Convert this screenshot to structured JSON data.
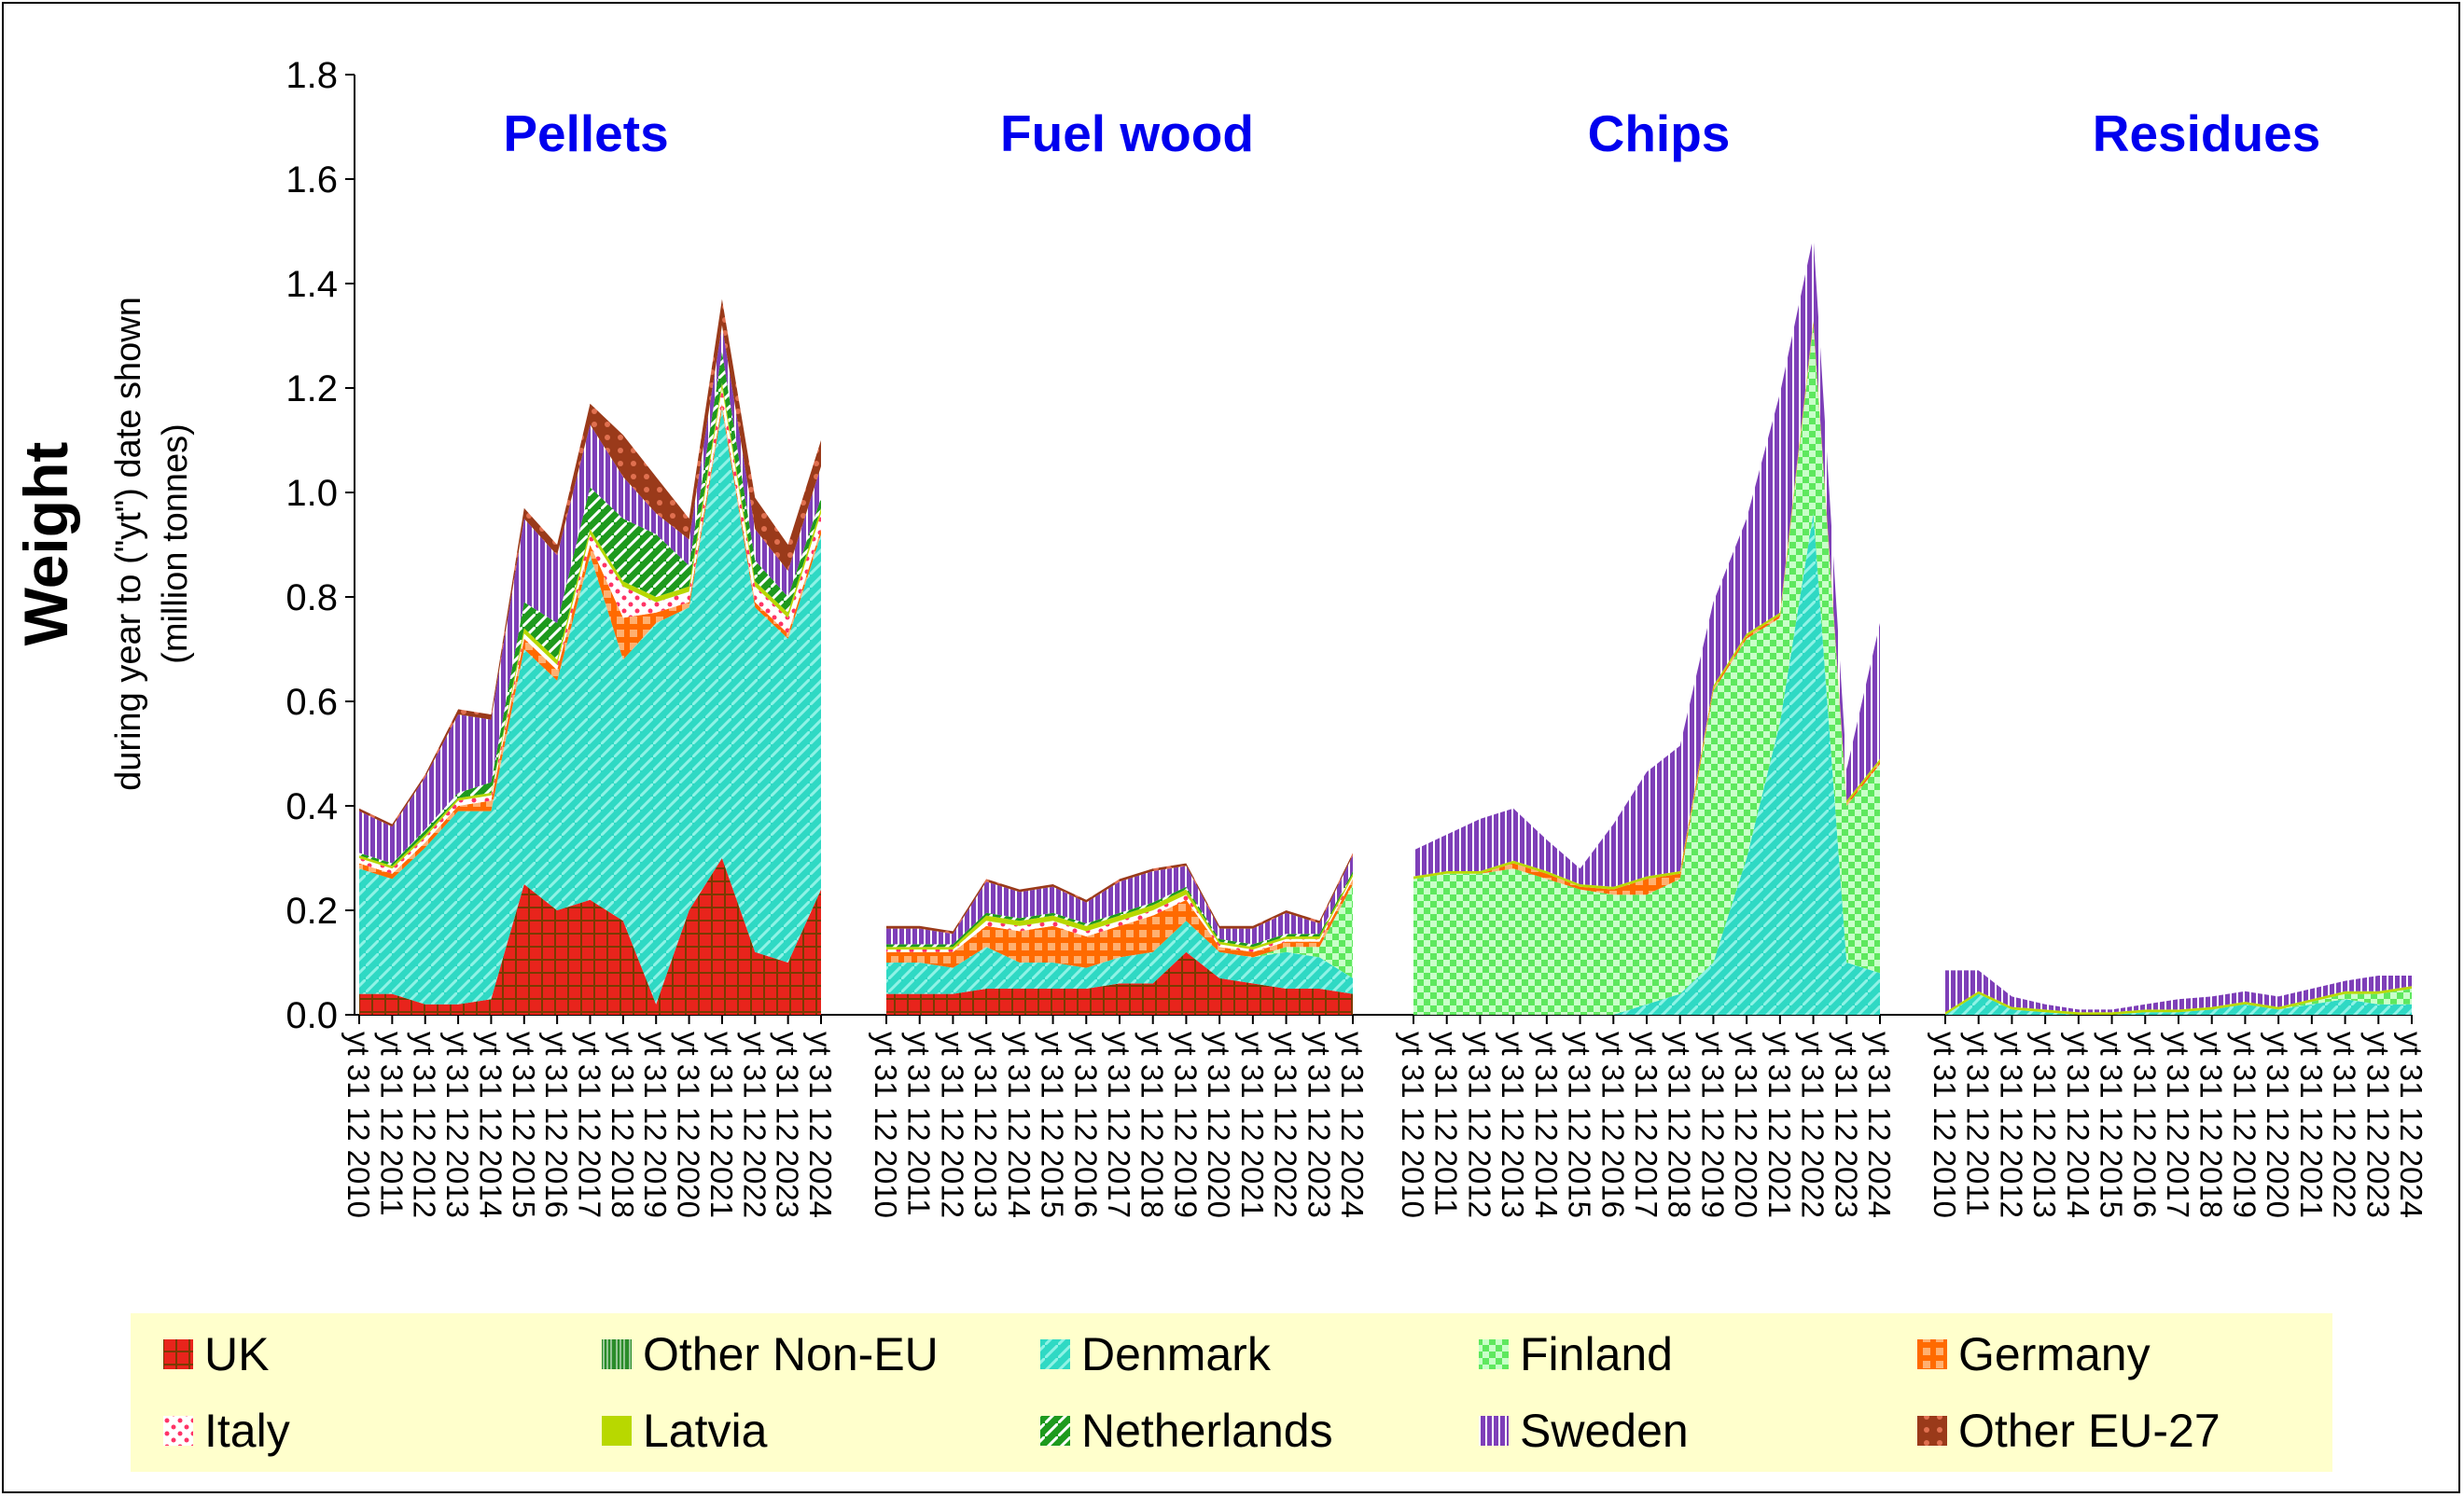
{
  "chart_data": {
    "type": "area",
    "stacked": true,
    "ylabel": "Weight",
    "ylabel_sub1": "during year to (\"yt\") date shown",
    "ylabel_sub2": "(million tonnes)",
    "ylim": [
      0,
      1.8
    ],
    "yticks": [
      "0.0",
      "0.2",
      "0.4",
      "0.6",
      "0.8",
      "1.0",
      "1.2",
      "1.4",
      "1.6",
      "1.8"
    ],
    "grid": false,
    "legend_position": "bottom",
    "x_tick_labels": [
      "yt 31 12 2010",
      "yt 31 12 2011",
      "yt 31 12 2012",
      "yt 31 12 2013",
      "yt 31 12 2014",
      "yt 31 12 2015",
      "yt 31 12 2016",
      "yt 31 12 2017",
      "yt 31 12 2018",
      "yt 31 12 2019",
      "yt 31 12 2020",
      "yt 31 12 2021",
      "yt 31 12 2022",
      "yt 31 12 2023",
      "yt 31 12 2024"
    ],
    "series_names": [
      "UK",
      "Other Non-EU",
      "Denmark",
      "Finland",
      "Germany",
      "Italy",
      "Latvia",
      "Netherlands",
      "Sweden",
      "Other EU-27"
    ],
    "series_colors": [
      "#e8241c",
      "#2a8c2a",
      "#2fd9c4",
      "#5ee85e",
      "#ff6a00",
      "#ff3366",
      "#b8d800",
      "#1e9a1e",
      "#7e3fb8",
      "#9a3a1a"
    ],
    "legend": [
      {
        "name": "UK",
        "color": "#e8241c"
      },
      {
        "name": "Other Non-EU",
        "color": "#2a8c2a"
      },
      {
        "name": "Denmark",
        "color": "#2fd9c4"
      },
      {
        "name": "Finland",
        "color": "#5ee85e"
      },
      {
        "name": "Germany",
        "color": "#ff6a00"
      },
      {
        "name": "Italy",
        "color": "#ff3366"
      },
      {
        "name": "Latvia",
        "color": "#b8d800"
      },
      {
        "name": "Netherlands",
        "color": "#1e9a1e"
      },
      {
        "name": "Sweden",
        "color": "#7e3fb8"
      },
      {
        "name": "Other EU-27",
        "color": "#9a3a1a"
      }
    ],
    "panels": [
      {
        "title": "Pellets",
        "x": [
          "2010",
          "2011",
          "2012",
          "2013",
          "2014",
          "2015",
          "2016",
          "2017",
          "2018",
          "2019",
          "2020",
          "2021",
          "2022",
          "2023",
          "2024"
        ],
        "series": [
          {
            "name": "UK",
            "values": [
              0.04,
              0.04,
              0.02,
              0.02,
              0.03,
              0.25,
              0.2,
              0.22,
              0.18,
              0.02,
              0.2,
              0.3,
              0.12,
              0.1,
              0.24
            ]
          },
          {
            "name": "Other Non-EU",
            "values": [
              0,
              0,
              0,
              0,
              0,
              0,
              0,
              0,
              0,
              0,
              0,
              0,
              0,
              0,
              0
            ]
          },
          {
            "name": "Denmark",
            "values": [
              0.24,
              0.22,
              0.3,
              0.37,
              0.36,
              0.45,
              0.44,
              0.66,
              0.5,
              0.73,
              0.58,
              0.86,
              0.66,
              0.62,
              0.68
            ]
          },
          {
            "name": "Finland",
            "values": [
              0,
              0,
              0,
              0,
              0,
              0,
              0,
              0,
              0,
              0,
              0,
              0,
              0,
              0,
              0
            ]
          },
          {
            "name": "Germany",
            "values": [
              0.01,
              0.01,
              0.01,
              0.01,
              0.02,
              0.02,
              0.02,
              0.02,
              0.08,
              0.02,
              0.01,
              0.01,
              0.01,
              0.01,
              0.01
            ]
          },
          {
            "name": "Italy",
            "values": [
              0.01,
              0.01,
              0.01,
              0.01,
              0.01,
              0.01,
              0.01,
              0.02,
              0.06,
              0.02,
              0.02,
              0.03,
              0.03,
              0.03,
              0.03
            ]
          },
          {
            "name": "Latvia",
            "values": [
              0.005,
              0.005,
              0.005,
              0.005,
              0.005,
              0.01,
              0.01,
              0.01,
              0.01,
              0.01,
              0.01,
              0.01,
              0.01,
              0.01,
              0.01
            ]
          },
          {
            "name": "Netherlands",
            "values": [
              0.005,
              0.005,
              0.01,
              0.01,
              0.02,
              0.05,
              0.07,
              0.08,
              0.12,
              0.12,
              0.04,
              0.06,
              0.04,
              0.03,
              0.02
            ]
          },
          {
            "name": "Sweden",
            "values": [
              0.08,
              0.07,
              0.1,
              0.15,
              0.12,
              0.16,
              0.13,
              0.12,
              0.08,
              0.04,
              0.05,
              0.05,
              0.06,
              0.05,
              0.06
            ]
          },
          {
            "name": "Other EU-27",
            "values": [
              0.005,
              0.005,
              0.005,
              0.01,
              0.01,
              0.02,
              0.02,
              0.04,
              0.08,
              0.07,
              0.04,
              0.05,
              0.06,
              0.05,
              0.05
            ]
          }
        ]
      },
      {
        "title": "Fuel wood",
        "x": [
          "2010",
          "2011",
          "2012",
          "2013",
          "2014",
          "2015",
          "2016",
          "2017",
          "2018",
          "2019",
          "2020",
          "2021",
          "2022",
          "2023",
          "2024"
        ],
        "series": [
          {
            "name": "UK",
            "values": [
              0.04,
              0.04,
              0.04,
              0.05,
              0.05,
              0.05,
              0.05,
              0.06,
              0.06,
              0.12,
              0.07,
              0.06,
              0.05,
              0.05,
              0.04
            ]
          },
          {
            "name": "Other Non-EU",
            "values": [
              0,
              0,
              0,
              0,
              0,
              0,
              0,
              0,
              0,
              0,
              0,
              0,
              0,
              0,
              0
            ]
          },
          {
            "name": "Denmark",
            "values": [
              0.06,
              0.06,
              0.05,
              0.08,
              0.05,
              0.05,
              0.04,
              0.05,
              0.06,
              0.06,
              0.05,
              0.05,
              0.07,
              0.06,
              0.03
            ]
          },
          {
            "name": "Finland",
            "values": [
              0.0,
              0.0,
              0.0,
              0.0,
              0.0,
              0.0,
              0.0,
              0.0,
              0.0,
              0.0,
              0.0,
              0.0,
              0.01,
              0.02,
              0.18
            ]
          },
          {
            "name": "Germany",
            "values": [
              0.02,
              0.02,
              0.03,
              0.04,
              0.06,
              0.07,
              0.06,
              0.06,
              0.07,
              0.04,
              0.01,
              0.01,
              0.01,
              0.01,
              0.01
            ]
          },
          {
            "name": "Italy",
            "values": [
              0.005,
              0.005,
              0.005,
              0.01,
              0.01,
              0.01,
              0.01,
              0.01,
              0.01,
              0.01,
              0.005,
              0.005,
              0.005,
              0.005,
              0.005
            ]
          },
          {
            "name": "Latvia",
            "values": [
              0.005,
              0.005,
              0.005,
              0.01,
              0.01,
              0.01,
              0.01,
              0.01,
              0.01,
              0.01,
              0.005,
              0.005,
              0.005,
              0.005,
              0.005
            ]
          },
          {
            "name": "Netherlands",
            "values": [
              0.005,
              0.005,
              0.005,
              0.005,
              0.005,
              0.005,
              0.005,
              0.005,
              0.005,
              0.005,
              0.005,
              0.005,
              0.005,
              0.005,
              0.005
            ]
          },
          {
            "name": "Sweden",
            "values": [
              0.03,
              0.03,
              0.02,
              0.06,
              0.05,
              0.05,
              0.04,
              0.06,
              0.06,
              0.04,
              0.02,
              0.03,
              0.04,
              0.02,
              0.03
            ]
          },
          {
            "name": "Other EU-27",
            "values": [
              0.005,
              0.005,
              0.005,
              0.005,
              0.005,
              0.005,
              0.005,
              0.005,
              0.005,
              0.005,
              0.005,
              0.005,
              0.005,
              0.005,
              0.005
            ]
          }
        ]
      },
      {
        "title": "Chips",
        "x": [
          "2010",
          "2011",
          "2012",
          "2013",
          "2014",
          "2015",
          "2016",
          "2017",
          "2018",
          "2019",
          "2020",
          "2021",
          "2022",
          "2023",
          "2024"
        ],
        "series": [
          {
            "name": "UK",
            "values": [
              0,
              0,
              0,
              0,
              0,
              0,
              0,
              0,
              0,
              0,
              0,
              0,
              0,
              0,
              0
            ]
          },
          {
            "name": "Other Non-EU",
            "values": [
              0,
              0,
              0,
              0,
              0,
              0,
              0,
              0,
              0,
              0,
              0,
              0,
              0,
              0,
              0
            ]
          },
          {
            "name": "Denmark",
            "values": [
              0,
              0,
              0,
              0,
              0,
              0,
              0,
              0.02,
              0.04,
              0.1,
              0.3,
              0.56,
              0.96,
              0.1,
              0.08
            ]
          },
          {
            "name": "Finland",
            "values": [
              0.26,
              0.27,
              0.27,
              0.28,
              0.26,
              0.24,
              0.23,
              0.21,
              0.22,
              0.52,
              0.42,
              0.2,
              0.36,
              0.3,
              0.4
            ]
          },
          {
            "name": "Germany",
            "values": [
              0,
              0,
              0,
              0.01,
              0.01,
              0.005,
              0.01,
              0.03,
              0.01,
              0.005,
              0.005,
              0.005,
              0.005,
              0.005,
              0.005
            ]
          },
          {
            "name": "Italy",
            "values": [
              0,
              0,
              0,
              0,
              0,
              0,
              0,
              0,
              0,
              0,
              0,
              0,
              0,
              0,
              0
            ]
          },
          {
            "name": "Latvia",
            "values": [
              0.005,
              0.005,
              0.005,
              0.005,
              0.005,
              0.005,
              0.005,
              0.005,
              0.005,
              0.005,
              0.005,
              0.005,
              0.005,
              0.005,
              0.005
            ]
          },
          {
            "name": "Netherlands",
            "values": [
              0,
              0,
              0,
              0,
              0,
              0,
              0,
              0,
              0,
              0,
              0,
              0,
              0,
              0,
              0
            ]
          },
          {
            "name": "Sweden",
            "values": [
              0.05,
              0.07,
              0.1,
              0.1,
              0.06,
              0.03,
              0.12,
              0.2,
              0.24,
              0.16,
              0.22,
              0.42,
              0.16,
              0.06,
              0.26
            ]
          },
          {
            "name": "Other EU-27",
            "values": [
              0,
              0,
              0,
              0,
              0,
              0,
              0,
              0,
              0,
              0,
              0,
              0,
              0,
              0,
              0
            ]
          }
        ]
      },
      {
        "title": "Residues",
        "x": [
          "2010",
          "2011",
          "2012",
          "2013",
          "2014",
          "2015",
          "2016",
          "2017",
          "2018",
          "2019",
          "2020",
          "2021",
          "2022",
          "2023",
          "2024"
        ],
        "series": [
          {
            "name": "UK",
            "values": [
              0,
              0,
              0,
              0,
              0,
              0,
              0,
              0,
              0,
              0,
              0,
              0,
              0,
              0,
              0
            ]
          },
          {
            "name": "Other Non-EU",
            "values": [
              0,
              0,
              0,
              0,
              0,
              0,
              0,
              0,
              0,
              0,
              0,
              0,
              0,
              0,
              0
            ]
          },
          {
            "name": "Denmark",
            "values": [
              0.0,
              0.04,
              0.01,
              0.005,
              0.0,
              0.0,
              0.005,
              0.005,
              0.01,
              0.02,
              0.01,
              0.02,
              0.03,
              0.02,
              0.02
            ]
          },
          {
            "name": "Finland",
            "values": [
              0,
              0,
              0,
              0,
              0,
              0,
              0,
              0,
              0,
              0,
              0,
              0.005,
              0.01,
              0.02,
              0.03
            ]
          },
          {
            "name": "Germany",
            "values": [
              0,
              0,
              0,
              0,
              0,
              0,
              0,
              0,
              0,
              0,
              0,
              0,
              0,
              0,
              0
            ]
          },
          {
            "name": "Italy",
            "values": [
              0,
              0,
              0,
              0,
              0,
              0,
              0,
              0,
              0,
              0,
              0,
              0,
              0,
              0,
              0
            ]
          },
          {
            "name": "Latvia",
            "values": [
              0.005,
              0.005,
              0.005,
              0.005,
              0.005,
              0.005,
              0.005,
              0.005,
              0.005,
              0.005,
              0.005,
              0.005,
              0.005,
              0.005,
              0.005
            ]
          },
          {
            "name": "Netherlands",
            "values": [
              0,
              0,
              0,
              0,
              0,
              0,
              0,
              0,
              0,
              0,
              0,
              0,
              0,
              0,
              0
            ]
          },
          {
            "name": "Sweden",
            "values": [
              0.08,
              0.04,
              0.02,
              0.01,
              0.005,
              0.005,
              0.01,
              0.02,
              0.02,
              0.02,
              0.02,
              0.02,
              0.02,
              0.03,
              0.02
            ]
          },
          {
            "name": "Other EU-27",
            "values": [
              0,
              0,
              0,
              0,
              0,
              0,
              0,
              0,
              0,
              0,
              0,
              0,
              0,
              0,
              0
            ]
          }
        ]
      }
    ]
  }
}
